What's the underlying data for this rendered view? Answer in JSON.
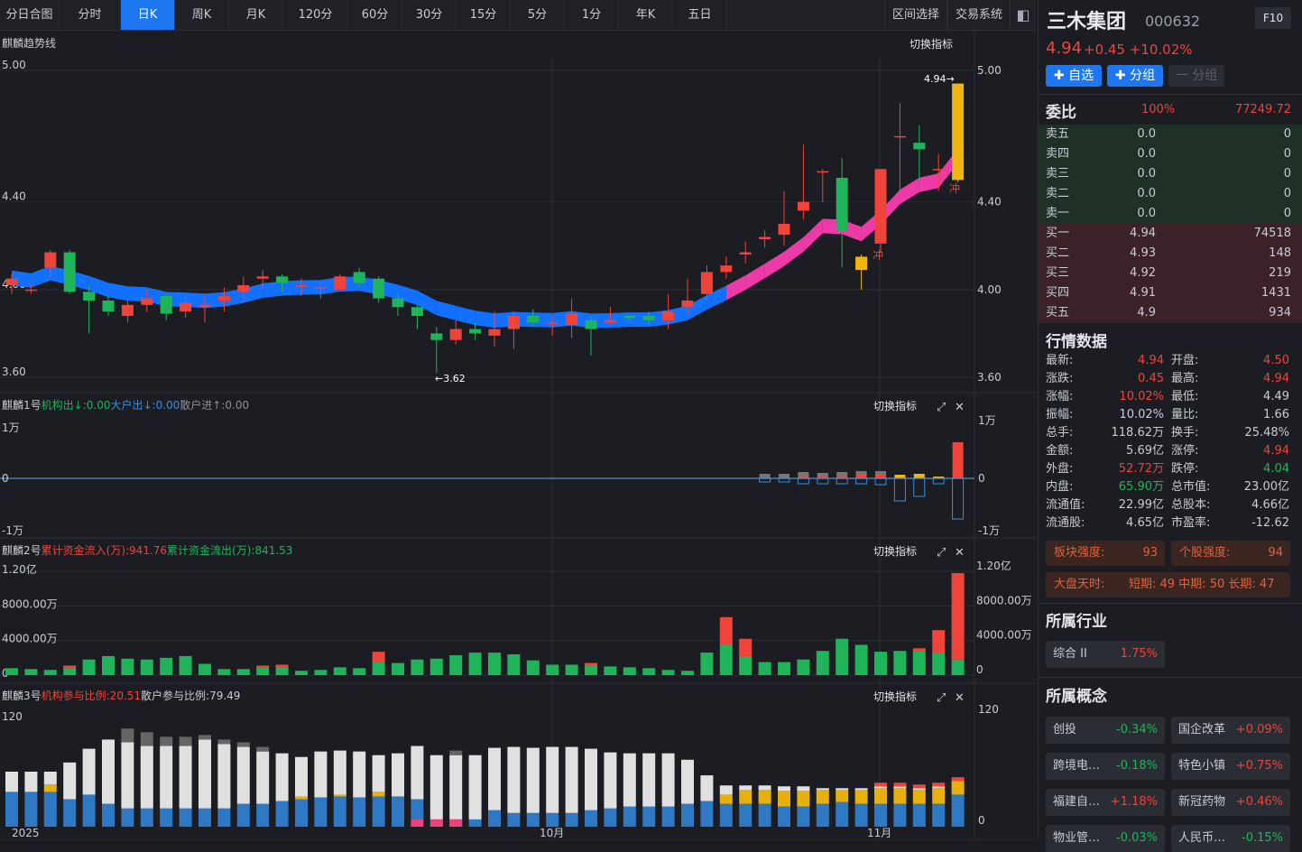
{
  "toolbar": {
    "tabs": [
      "分日合图",
      "分时",
      "日K",
      "周K",
      "月K",
      "120分",
      "60分",
      "30分",
      "15分",
      "5分",
      "1分",
      "年K",
      "五日"
    ],
    "active": 2,
    "right": [
      "区间选择",
      "交易系统"
    ]
  },
  "main_panel": {
    "title": "麒麟趋势线",
    "switch": "切换指标",
    "y_ticks": [
      "5.00",
      "4.40",
      "4.00",
      "3.60"
    ],
    "high_label": "4.94→",
    "low_label": "←3.62",
    "chong": "冲"
  },
  "p1": {
    "name": "麒麟1号",
    "a": "机构出↓:0.00",
    "b": "大户出↓:0.00",
    "c": "散户进↑:0.00",
    "switch": "切换指标",
    "y_ticks": [
      "1万",
      "0",
      "-1万"
    ]
  },
  "p2": {
    "name": "麒麟2号",
    "a": "累计资金流入(万):941.76",
    "b": "累计资金流出(万):841.53",
    "switch": "切换指标",
    "y_left": [
      "1.20亿",
      "8000.00万",
      "4000.00万",
      "0"
    ],
    "y_right": [
      "1.20亿",
      "8000.00万",
      "4000.00万",
      "0"
    ]
  },
  "p3": {
    "name": "麒麟3号",
    "a": "机构参与比例:20.51",
    "b": "散户参与比例:79.49",
    "switch": "切换指标",
    "y_ticks": [
      "120",
      "0"
    ]
  },
  "x_labels": [
    "2025",
    "10月",
    "11月"
  ],
  "chart_data": {
    "type": "candlestick",
    "y_range": [
      3.55,
      5.05
    ],
    "candles": [
      [
        4.02,
        4.05,
        3.98,
        4.07
      ],
      [
        4.0,
        4.0,
        3.98,
        4.02
      ],
      [
        4.1,
        4.17,
        4.05,
        4.18
      ],
      [
        4.17,
        3.99,
        3.98,
        4.18
      ],
      [
        3.99,
        3.95,
        3.8,
        4.02
      ],
      [
        3.95,
        3.9,
        3.88,
        3.97
      ],
      [
        3.88,
        3.93,
        3.85,
        3.96
      ],
      [
        3.93,
        3.96,
        3.9,
        4.0
      ],
      [
        3.97,
        3.89,
        3.86,
        3.98
      ],
      [
        3.9,
        3.94,
        3.87,
        3.98
      ],
      [
        3.92,
        3.93,
        3.85,
        3.97
      ],
      [
        3.95,
        3.97,
        3.9,
        4.01
      ],
      [
        3.99,
        4.02,
        3.94,
        4.06
      ],
      [
        4.05,
        4.06,
        4.0,
        4.09
      ],
      [
        4.06,
        4.03,
        3.99,
        4.07
      ],
      [
        4.02,
        4.02,
        3.97,
        4.05
      ],
      [
        4.01,
        4.01,
        3.96,
        4.04
      ],
      [
        4.0,
        4.06,
        3.99,
        4.07
      ],
      [
        4.08,
        4.03,
        4.01,
        4.1
      ],
      [
        4.05,
        3.96,
        3.94,
        4.06
      ],
      [
        3.96,
        3.92,
        3.88,
        3.98
      ],
      [
        3.92,
        3.88,
        3.82,
        3.93
      ],
      [
        3.8,
        3.77,
        3.62,
        3.83
      ],
      [
        3.77,
        3.82,
        3.75,
        3.86
      ],
      [
        3.82,
        3.8,
        3.77,
        3.85
      ],
      [
        3.79,
        3.82,
        3.74,
        3.9
      ],
      [
        3.82,
        3.88,
        3.73,
        3.9
      ],
      [
        3.88,
        3.85,
        3.83,
        3.91
      ],
      [
        3.85,
        3.85,
        3.79,
        3.88
      ],
      [
        3.84,
        3.89,
        3.78,
        3.96
      ],
      [
        3.86,
        3.82,
        3.7,
        3.88
      ],
      [
        3.85,
        3.86,
        3.84,
        3.92
      ],
      [
        3.88,
        3.87,
        3.85,
        3.89
      ],
      [
        3.88,
        3.86,
        3.84,
        3.9
      ],
      [
        3.86,
        3.9,
        3.82,
        3.98
      ],
      [
        3.92,
        3.95,
        3.89,
        4.05
      ],
      [
        3.98,
        4.08,
        3.95,
        4.11
      ],
      [
        4.08,
        4.11,
        4.05,
        4.15
      ],
      [
        4.16,
        4.17,
        4.12,
        4.22
      ],
      [
        4.23,
        4.24,
        4.19,
        4.27
      ],
      [
        4.25,
        4.3,
        4.2,
        4.45
      ],
      [
        4.36,
        4.4,
        4.32,
        4.66
      ],
      [
        4.54,
        4.54,
        4.4,
        4.55
      ],
      [
        4.51,
        4.27,
        4.1,
        4.6
      ],
      [
        4.09,
        4.15,
        4.0,
        4.16
      ],
      [
        4.21,
        4.55,
        4.17,
        4.55
      ],
      [
        4.7,
        4.7,
        4.42,
        4.85
      ],
      [
        4.67,
        4.64,
        4.5,
        4.75
      ],
      [
        4.55,
        4.55,
        4.45,
        4.62
      ],
      [
        4.5,
        4.94,
        4.49,
        4.94
      ]
    ]
  },
  "right_panel": {
    "name": "三木集团",
    "code": "000632",
    "f10": "F10",
    "price": "4.94",
    "change": "+0.45",
    "pct": "+10.02%",
    "btn_watch": "✚ 自选",
    "btn_group": "✚ 分组",
    "btn_sub": "一 分组",
    "weibi": {
      "label": "委比",
      "pct": "100%",
      "diff": "77249.72"
    },
    "asks": [
      [
        "卖五",
        "0.0",
        "0"
      ],
      [
        "卖四",
        "0.0",
        "0"
      ],
      [
        "卖三",
        "0.0",
        "0"
      ],
      [
        "卖二",
        "0.0",
        "0"
      ],
      [
        "卖一",
        "0.0",
        "0"
      ]
    ],
    "bids": [
      [
        "买一",
        "4.94",
        "74518"
      ],
      [
        "买二",
        "4.93",
        "148"
      ],
      [
        "买三",
        "4.92",
        "219"
      ],
      [
        "买四",
        "4.91",
        "1431"
      ],
      [
        "买五",
        "4.9",
        "934"
      ]
    ],
    "quote_title": "行情数据",
    "quotes": [
      [
        "最新:",
        "4.94",
        "开盘:",
        "4.50",
        "up",
        "up"
      ],
      [
        "涨跌:",
        "0.45",
        "最高:",
        "4.94",
        "up",
        "up"
      ],
      [
        "涨幅:",
        "10.02%",
        "最低:",
        "4.49",
        "up",
        ""
      ],
      [
        "振幅:",
        "10.02%",
        "量比:",
        "1.66",
        "",
        ""
      ],
      [
        "总手:",
        "118.62万",
        "换手:",
        "25.48%",
        "",
        ""
      ],
      [
        "金额:",
        "5.69亿",
        "涨停:",
        "4.94",
        "",
        "up"
      ],
      [
        "外盘:",
        "52.72万",
        "跌停:",
        "4.04",
        "up",
        "dn"
      ],
      [
        "内盘:",
        "65.90万",
        "总市值:",
        "23.00亿",
        "dn",
        ""
      ],
      [
        "流通值:",
        "22.99亿",
        "总股本:",
        "4.66亿",
        "",
        ""
      ],
      [
        "流通股:",
        "4.65亿",
        "市盈率:",
        "-12.62",
        "",
        ""
      ]
    ],
    "block_strength": "板块强度:",
    "block_val": "93",
    "stock_strength": "个股强度:",
    "stock_val": "94",
    "market": "大盘天时:",
    "market_vals": "短期: 49 中期: 50 长期: 47",
    "industry_title": "所属行业",
    "industry": [
      [
        "综合 II",
        "1.75%"
      ]
    ],
    "concept_title": "所属概念",
    "concepts": [
      [
        "创投",
        "-0.34%"
      ],
      [
        "国企改革",
        "+0.09%"
      ],
      [
        "跨境电…",
        "-0.18%"
      ],
      [
        "特色小镇",
        "+0.75%"
      ],
      [
        "福建自…",
        "+1.18%"
      ],
      [
        "新冠药物",
        "+0.46%"
      ],
      [
        "物业管…",
        "-0.03%"
      ],
      [
        "人民币…",
        "-0.15%"
      ]
    ]
  }
}
